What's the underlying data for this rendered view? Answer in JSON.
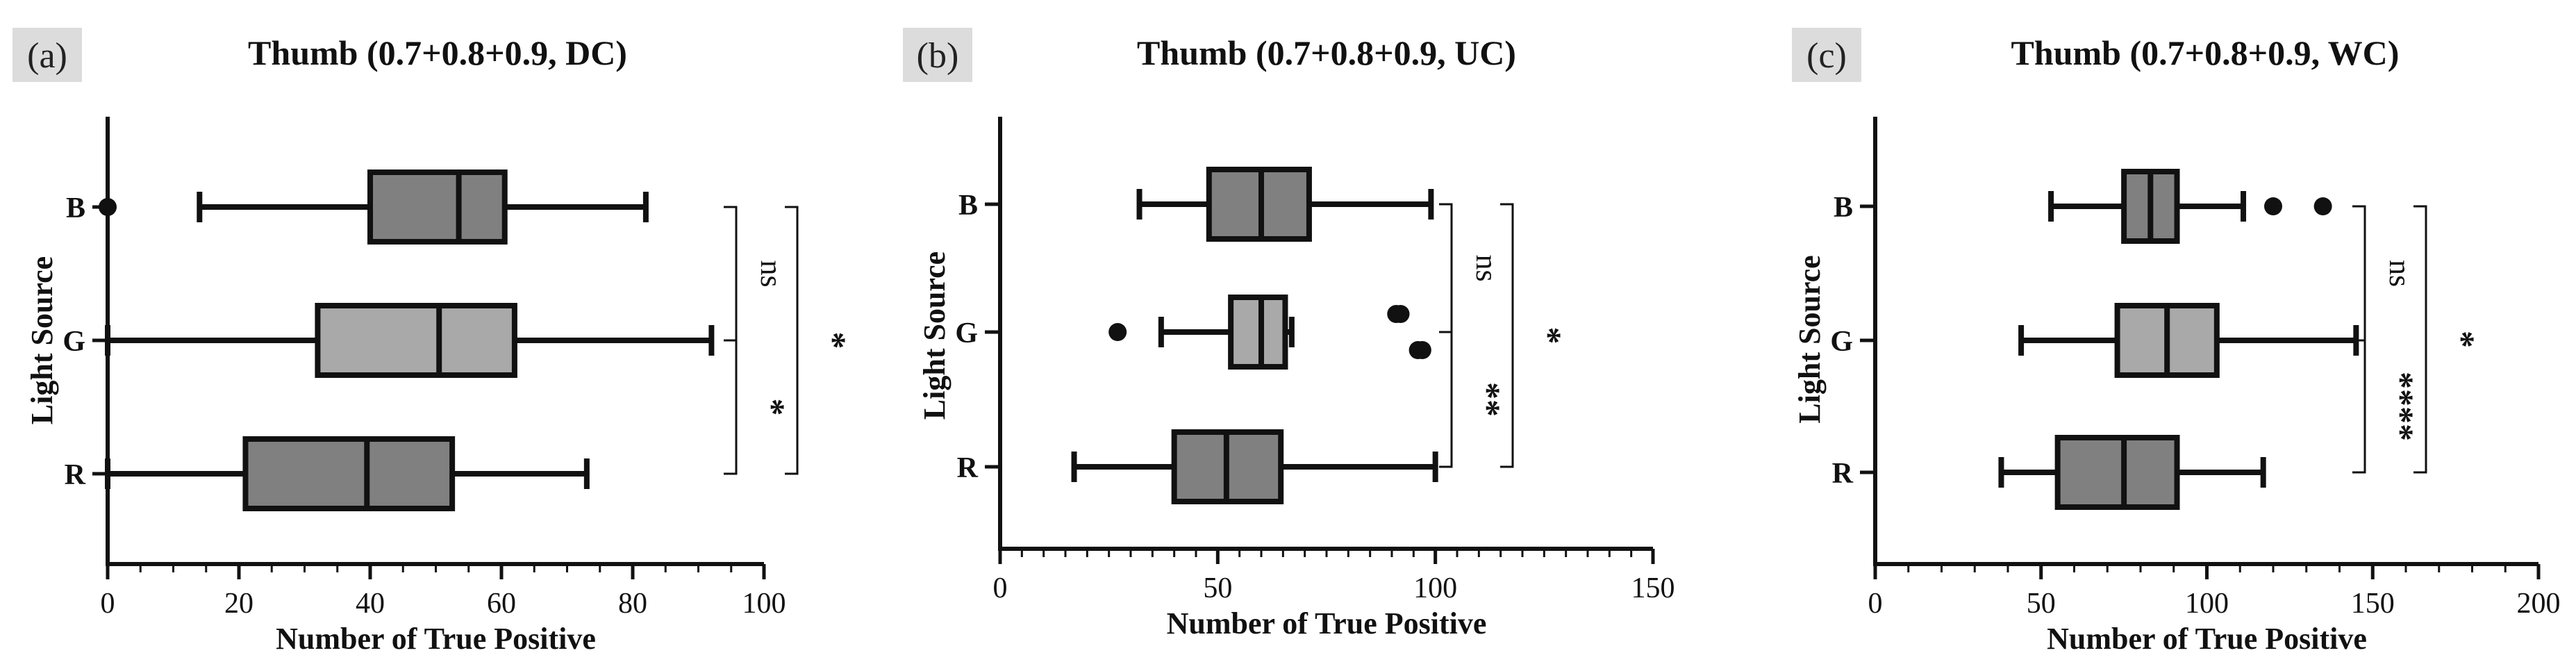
{
  "chart_data": [
    {
      "type": "boxplot",
      "panel_label": "(a)",
      "title": "Thumb (0.7+0.8+0.9, DC)",
      "xlabel": "Number of True  Positive",
      "ylabel": "Light Source",
      "xlim": [
        0,
        100
      ],
      "x_ticks": [
        0,
        20,
        40,
        60,
        80,
        100
      ],
      "x_tick_labels": [
        "0",
        "20",
        "40",
        "60",
        "80",
        "100"
      ],
      "x_minor_step": 5,
      "categories": [
        "B",
        "G",
        "R"
      ],
      "colors": {
        "B": "#808080",
        "G": "#a9a9a9",
        "R": "#808080"
      },
      "boxes": [
        {
          "category": "B",
          "min": 14,
          "q1": 40,
          "median": 53.5,
          "q3": 60.5,
          "max": 82,
          "outliers": [
            0
          ]
        },
        {
          "category": "G",
          "min": 0,
          "q1": 32,
          "median": 50.5,
          "q3": 62,
          "max": 92,
          "outliers": []
        },
        {
          "category": "R",
          "min": 0,
          "q1": 21,
          "median": 39.5,
          "q3": 52.5,
          "max": 73,
          "outliers": []
        }
      ],
      "significance": [
        {
          "from": "B",
          "to": "G",
          "label": "ns"
        },
        {
          "from": "G",
          "to": "R",
          "label": "*"
        },
        {
          "from": "B",
          "to": "R",
          "label": "*"
        }
      ]
    },
    {
      "type": "boxplot",
      "panel_label": "(b)",
      "title": "Thumb (0.7+0.8+0.9, UC)",
      "xlabel": "Number of True  Positive",
      "ylabel": "Light Source",
      "xlim": [
        0,
        150
      ],
      "x_ticks": [
        0,
        50,
        100,
        150
      ],
      "x_tick_labels": [
        "0",
        "50",
        "100",
        "150"
      ],
      "x_minor_step": 5,
      "categories": [
        "B",
        "G",
        "R"
      ],
      "colors": {
        "B": "#808080",
        "G": "#a9a9a9",
        "R": "#808080"
      },
      "boxes": [
        {
          "category": "B",
          "min": 32,
          "q1": 48,
          "median": 60,
          "q3": 71,
          "max": 99,
          "outliers": []
        },
        {
          "category": "G",
          "min": 37,
          "q1": 53,
          "median": 60,
          "q3": 65.5,
          "max": 67,
          "outliers": [
            27,
            91,
            96,
            92,
            97
          ]
        },
        {
          "category": "R",
          "min": 17,
          "q1": 40,
          "median": 52,
          "q3": 64.5,
          "max": 100,
          "outliers": []
        }
      ],
      "significance": [
        {
          "from": "B",
          "to": "G",
          "label": "ns"
        },
        {
          "from": "G",
          "to": "R",
          "label": "**"
        },
        {
          "from": "B",
          "to": "R",
          "label": "*"
        }
      ]
    },
    {
      "type": "boxplot",
      "panel_label": "(c)",
      "title": "Thumb (0.7+0.8+0.9, WC)",
      "xlabel": "Number of True  Positive",
      "ylabel": "Light Source",
      "xlim": [
        0,
        200
      ],
      "x_ticks": [
        0,
        50,
        100,
        150,
        200
      ],
      "x_tick_labels": [
        "0",
        "50",
        "100",
        "150",
        "200"
      ],
      "x_minor_step": 10,
      "categories": [
        "B",
        "G",
        "R"
      ],
      "colors": {
        "B": "#808080",
        "G": "#a9a9a9",
        "R": "#808080"
      },
      "boxes": [
        {
          "category": "B",
          "min": 53,
          "q1": 75,
          "median": 83,
          "q3": 91,
          "max": 111,
          "outliers": [
            120,
            135
          ]
        },
        {
          "category": "G",
          "min": 44,
          "q1": 73,
          "median": 88,
          "q3": 103,
          "max": 145,
          "outliers": []
        },
        {
          "category": "R",
          "min": 38,
          "q1": 55,
          "median": 75,
          "q3": 91,
          "max": 117,
          "outliers": []
        }
      ],
      "significance": [
        {
          "from": "B",
          "to": "G",
          "label": "ns"
        },
        {
          "from": "G",
          "to": "R",
          "label": "****"
        },
        {
          "from": "B",
          "to": "R",
          "label": "*"
        }
      ]
    }
  ]
}
